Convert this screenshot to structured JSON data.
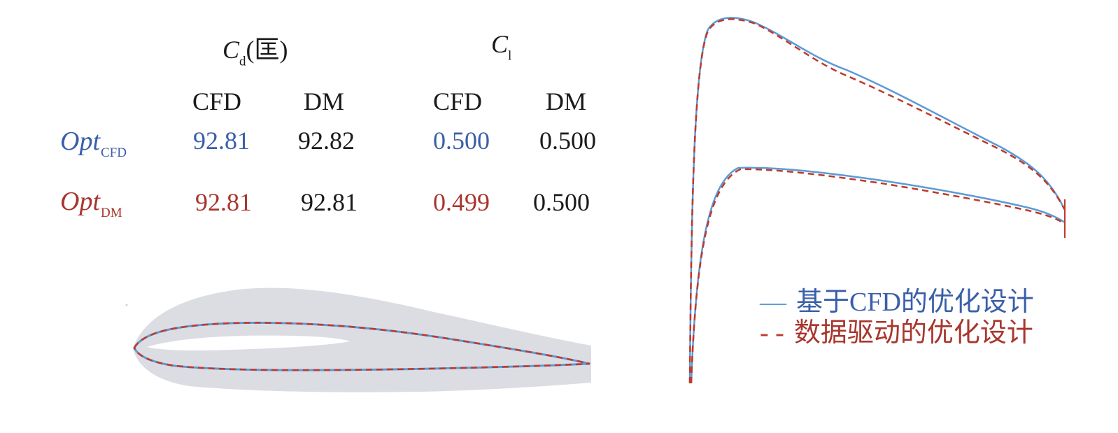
{
  "table": {
    "groups": [
      {
        "symbol": "C",
        "subscript": "d",
        "suffix": "(匡)"
      },
      {
        "symbol": "C",
        "subscript": "l",
        "suffix": ""
      }
    ],
    "subheaders": [
      "CFD",
      "DM",
      "CFD",
      "DM"
    ],
    "rows": [
      {
        "label": "Opt",
        "label_sub": "CFD",
        "color": "#3a5fa8",
        "values": [
          "92.81",
          "92.82",
          "0.500",
          "0.500"
        ]
      },
      {
        "label": "Opt",
        "label_sub": "DM",
        "color": "#a8362d",
        "values": [
          "92.81",
          "92.81",
          "0.499",
          "0.500"
        ]
      }
    ]
  },
  "legend": {
    "items": [
      {
        "symbol": "—",
        "label": "基于CFD的优化设计",
        "color": "#3a5fa8"
      },
      {
        "symbol": "- -",
        "label": "数据驱动的优化设计",
        "color": "#a8362d"
      }
    ]
  },
  "colors": {
    "cfd": "#5b9bd5",
    "dm": "#c0392b",
    "design_space": "#dcdde3",
    "text": "#1a1a1a"
  }
}
